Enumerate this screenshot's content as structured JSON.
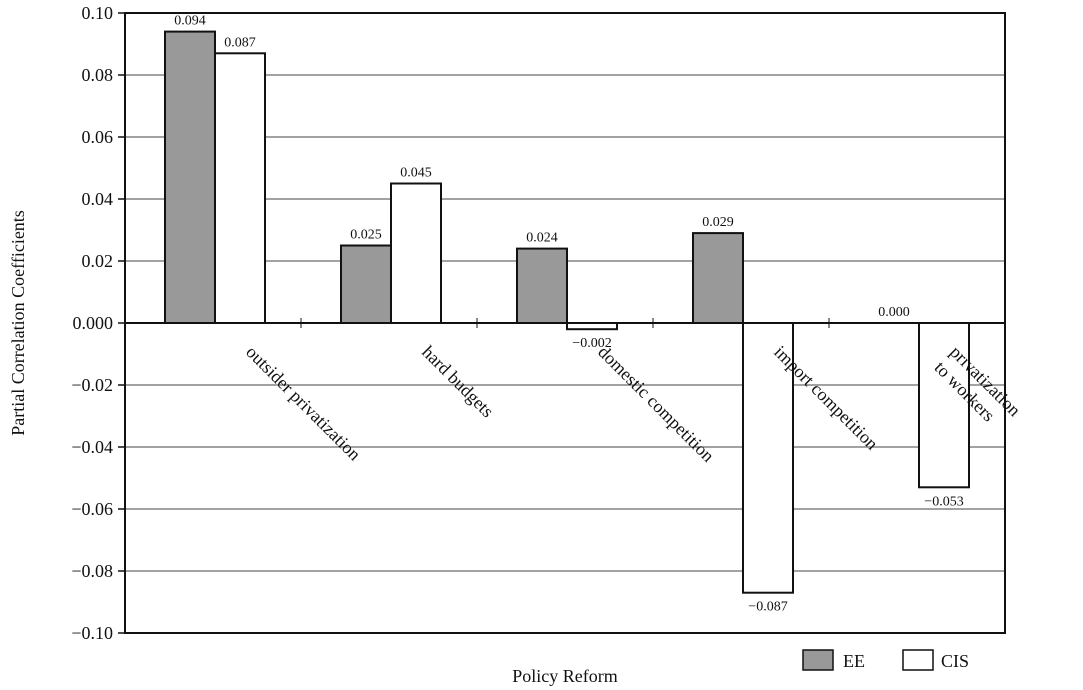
{
  "chart_data": {
    "type": "bar",
    "categories": [
      "outsider privatization",
      "hard budgets",
      "domestic competition",
      "import competition",
      "privatization to workers"
    ],
    "category_label_lines": [
      [
        "outsider privatization"
      ],
      [
        "hard budgets"
      ],
      [
        "domestic competition"
      ],
      [
        "import competition"
      ],
      [
        "privatization",
        "to workers"
      ]
    ],
    "series": [
      {
        "name": "EE",
        "values": [
          0.094,
          0.025,
          0.024,
          0.029,
          0.0
        ],
        "labels": [
          "0.094",
          "0.025",
          "0.024",
          "0.029",
          "0.000"
        ],
        "color": "#999999"
      },
      {
        "name": "CIS",
        "values": [
          0.087,
          0.045,
          -0.002,
          -0.087,
          -0.053
        ],
        "labels": [
          "0.087",
          "0.045",
          "−0.002",
          "−0.087",
          "−0.053"
        ],
        "color": "#ffffff"
      }
    ],
    "xlabel": "Policy Reform",
    "ylabel": "Partial Correlation Coefficients",
    "ylim": [
      -0.1,
      0.1
    ],
    "yticks": [
      0.1,
      0.08,
      0.06,
      0.04,
      0.02,
      0.0,
      -0.02,
      -0.04,
      -0.06,
      -0.08,
      -0.1
    ],
    "ytick_labels": [
      "0.10",
      "0.08",
      "0.06",
      "0.04",
      "0.02",
      "0.000",
      "−0.02",
      "−0.04",
      "−0.06",
      "−0.08",
      "−0.10"
    ],
    "grid": true,
    "legend_position": "bottom-right"
  }
}
